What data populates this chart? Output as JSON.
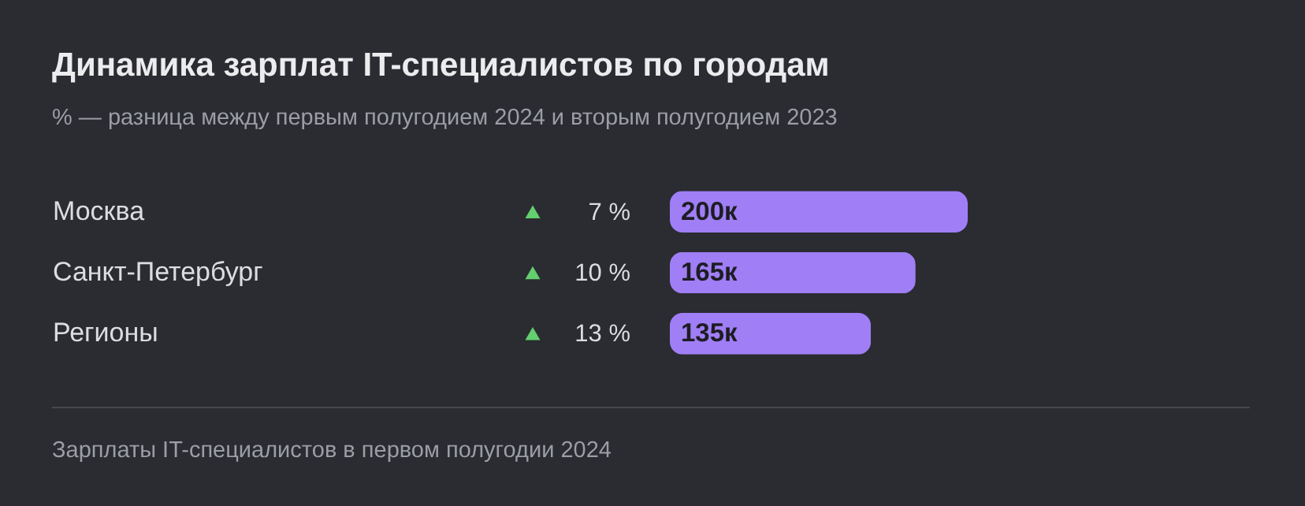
{
  "chart_data": {
    "type": "bar",
    "orientation": "horizontal",
    "title": "Динамика зарплат IT-специалистов по городам",
    "subtitle": "% — разница между первым полугодием 2024 и вторым полугодием 2023",
    "categories": [
      "Москва",
      "Санкт-Петербург",
      "Регионы"
    ],
    "values": [
      200,
      165,
      135
    ],
    "value_labels": [
      "200к",
      "165к",
      "135к"
    ],
    "color": "#a07ef6",
    "annotations": [
      "7 %",
      "10 %",
      "13 %",
      "Зарплаты IT-специалистов в первом полугодии 2024"
    ]
  }
}
